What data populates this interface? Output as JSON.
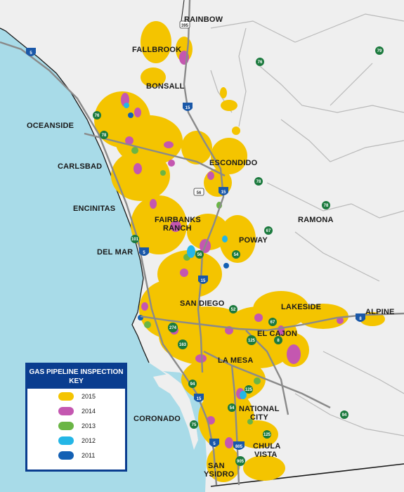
{
  "colors": {
    "ocean": "#a8dbe8",
    "land": "#efefef",
    "roads": "#8a8a8a",
    "boundary": "#1a1a1a",
    "y2015": "#f4c400",
    "y2014": "#c457b0",
    "y2013": "#6ab545",
    "y2012": "#24b6e6",
    "y2011": "#1360b4",
    "legend_border": "#0a3d8f",
    "shield_green": "#1c7a3e",
    "shield_blue": "#1a58a8"
  },
  "cities": {
    "rainbow": "RAINBOW",
    "fallbrook": "FALLBROOK",
    "bonsall": "BONSALL",
    "oceanside": "OCEANSIDE",
    "carlsbad": "CARLSBAD",
    "escondido": "ESCONDIDO",
    "encinitas": "ENCINITAS",
    "fairbanks_1": "FAIRBANKS",
    "fairbanks_2": "RANCH",
    "ramona": "RAMONA",
    "poway": "POWAY",
    "del_mar": "DEL MAR",
    "san_diego": "SAN DIEGO",
    "lakeside": "LAKESIDE",
    "alpine": "ALPINE",
    "el_cajon": "EL CAJON",
    "la_mesa": "LA MESA",
    "national_1": "NATIONAL",
    "national_2": "CITY",
    "coronado": "CORONADO",
    "chula_1": "CHULA",
    "chula_2": "VISTA",
    "san_ysidro_1": "SAN",
    "san_ysidro_2": "YSIDRO"
  },
  "shields": {
    "i5": "5",
    "i15": "15",
    "i8": "8",
    "i805": "805",
    "sr76": "76",
    "sr79": "79",
    "sr78": "78",
    "sr67": "67",
    "sr54": "54",
    "sr52": "52",
    "sr94": "94",
    "sr125": "125",
    "sr163": "163",
    "sr274": "274",
    "sr56": "56",
    "sr75": "75",
    "sr905": "905",
    "sr101": "101",
    "sr395": "395"
  },
  "legend": {
    "title": "GAS PIPELINE INSPECTION KEY",
    "years": [
      "2015",
      "2014",
      "2013",
      "2012",
      "2011"
    ]
  }
}
